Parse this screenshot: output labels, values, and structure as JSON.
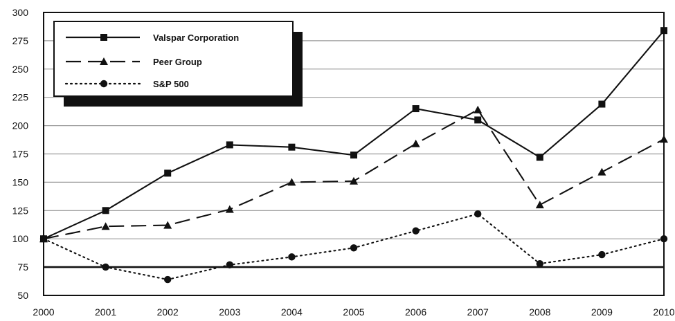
{
  "chart_data": {
    "type": "line",
    "x": [
      "2000",
      "2001",
      "2002",
      "2003",
      "2004",
      "2005",
      "2006",
      "2007",
      "2008",
      "2009",
      "2010"
    ],
    "ylim": [
      50,
      300
    ],
    "yticks": [
      50,
      75,
      100,
      125,
      150,
      175,
      200,
      225,
      250,
      275,
      300
    ],
    "reference_line": 75,
    "grid": "horizontal",
    "legend_position": "top-left",
    "series": [
      {
        "name": "Valspar Corporation",
        "values": [
          100,
          125,
          158,
          183,
          181,
          174,
          215,
          205,
          172,
          219,
          284
        ],
        "marker": "square",
        "line_style": "solid",
        "color": "#111111"
      },
      {
        "name": "Peer Group",
        "values": [
          100,
          111,
          112,
          126,
          150,
          151,
          184,
          214,
          130,
          159,
          188
        ],
        "marker": "triangle",
        "line_style": "dashed",
        "color": "#111111"
      },
      {
        "name": "S&P 500",
        "values": [
          100,
          75,
          64,
          77,
          84,
          92,
          107,
          122,
          78,
          86,
          100
        ],
        "marker": "circle",
        "line_style": "dotted",
        "color": "#111111"
      }
    ]
  }
}
